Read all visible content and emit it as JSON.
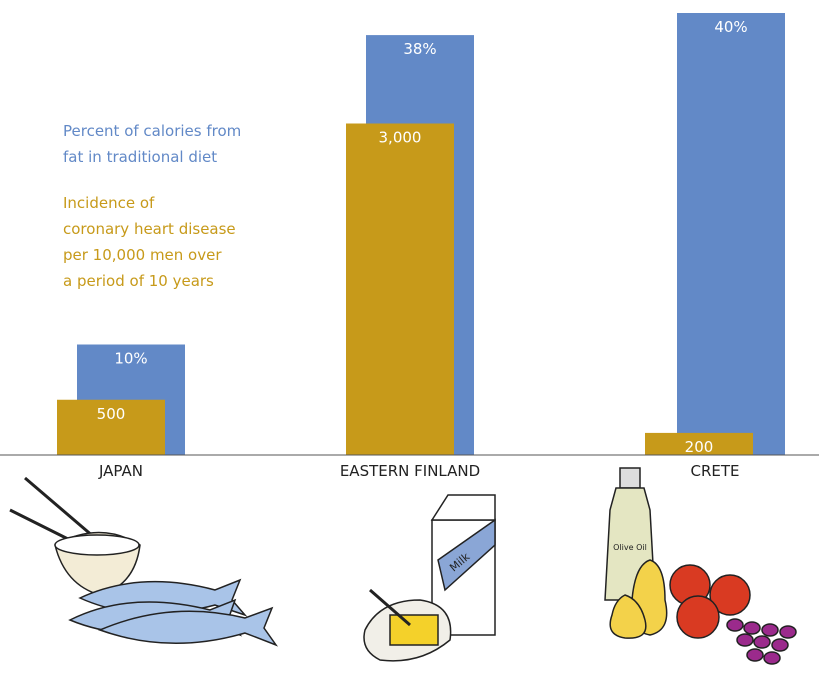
{
  "chart_data": {
    "type": "bar",
    "categories": [
      "JAPAN",
      "EASTERN FINLAND",
      "CRETE"
    ],
    "ylim": [
      0,
      40
    ],
    "y2lim": [
      0,
      4000
    ],
    "series": [
      {
        "name": "Percent of calories from\nfat in traditional diet",
        "color": "#6289c7",
        "values": [
          10,
          38,
          40
        ],
        "value_labels": [
          "10%",
          "38%",
          "40%"
        ]
      },
      {
        "name": "Incidence of\ncoronary heart disease\nper 10,000 men over\na period of 10 years",
        "color": "#c79a1a",
        "axis": "y2",
        "values": [
          500,
          3000,
          200
        ],
        "value_labels": [
          "500",
          "3,000",
          "200"
        ]
      }
    ],
    "illustrations": {
      "milk": "Milk",
      "olive_oil": "Olive Oil"
    }
  }
}
